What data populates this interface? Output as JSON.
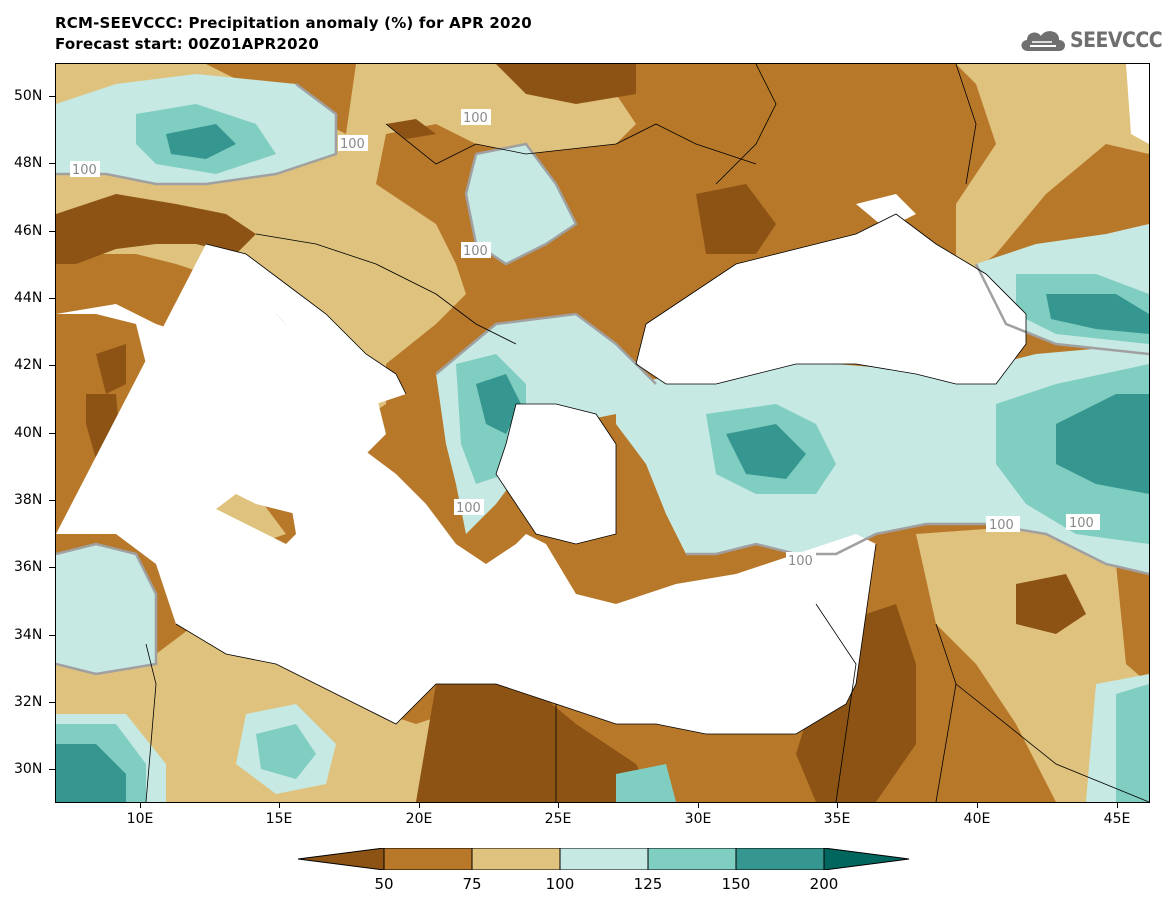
{
  "header": {
    "title_line1": "RCM-SEEVCCC: Precipitation anomaly (%) for APR 2020",
    "title_line2": "Forecast start: 00Z01APR2020"
  },
  "logo": {
    "text": "SEEVCCC",
    "icon": "cloud-icon",
    "color": "#6f6f6f"
  },
  "map": {
    "lat_labels": [
      "50N",
      "48N",
      "46N",
      "44N",
      "42N",
      "40N",
      "38N",
      "36N",
      "34N",
      "32N",
      "30N"
    ],
    "lon_labels": [
      "10E",
      "15E",
      "20E",
      "25E",
      "30E",
      "35E",
      "40E",
      "45E"
    ],
    "contour_labels": [
      "100",
      "100",
      "100",
      "100",
      "100",
      "100",
      "100",
      "100"
    ],
    "sea_color": "#ffffff"
  },
  "legend": {
    "thresholds": [
      "50",
      "75",
      "100",
      "125",
      "150",
      "200"
    ],
    "colors": [
      "#8c5314",
      "#b8782a",
      "#dfc27d",
      "#c6e9e3",
      "#80cdc1",
      "#35978f",
      "#01665e"
    ]
  }
}
